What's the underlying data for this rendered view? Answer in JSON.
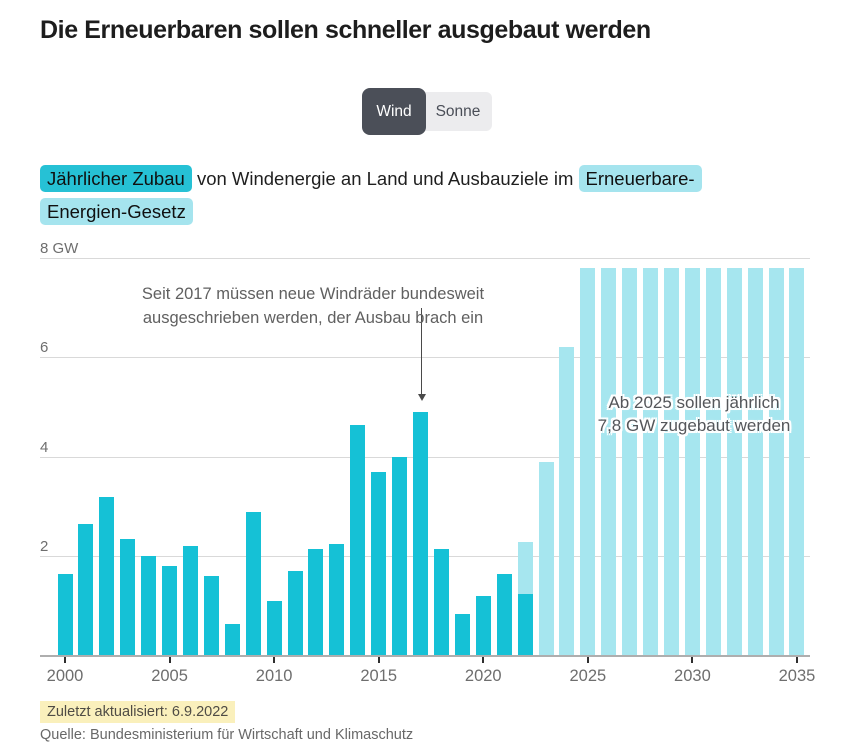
{
  "title": "Die Erneuerbaren sollen schneller ausgebaut werden",
  "toggle": {
    "wind_label": "Wind",
    "sonne_label": "Sonne",
    "selected": "Wind"
  },
  "subtitle": {
    "highlight_dark": "Jährlicher Zubau",
    "middle": "von Windenergie an Land und Ausbauziele im",
    "highlight_light_part1": "Erneuerbare-",
    "highlight_light_part2": "Energien-Gesetz"
  },
  "colors": {
    "bar_actual": "#15c1d6",
    "bar_target": "#a6e6ef",
    "highlight_dark_bg": "#26c1d5",
    "highlight_light_bg": "#a5e4ee",
    "updated_bg": "#faf0bc",
    "toggle_selected_bg": "#4b4f58",
    "toggle_unselected_bg": "#ececee"
  },
  "chart_data": {
    "type": "bar",
    "unit": "GW",
    "ylim": [
      0,
      8
    ],
    "yticks": [
      2,
      4,
      6,
      8
    ],
    "ytick_labels": [
      "2",
      "4",
      "6",
      "8 GW"
    ],
    "xticks": [
      2000,
      2005,
      2010,
      2015,
      2020,
      2025,
      2030,
      2035
    ],
    "grid": true,
    "series": [
      {
        "name": "Ausbauziele (EEG)",
        "style": "target",
        "points": [
          [
            2022,
            2.3
          ],
          [
            2023,
            3.9
          ],
          [
            2024,
            6.2
          ],
          [
            2025,
            7.8
          ],
          [
            2026,
            7.8
          ],
          [
            2027,
            7.8
          ],
          [
            2028,
            7.8
          ],
          [
            2029,
            7.8
          ],
          [
            2030,
            7.8
          ],
          [
            2031,
            7.8
          ],
          [
            2032,
            7.8
          ],
          [
            2033,
            7.8
          ],
          [
            2034,
            7.8
          ],
          [
            2035,
            7.8
          ]
        ]
      },
      {
        "name": "Jährlicher Zubau",
        "style": "actual",
        "points": [
          [
            2000,
            1.65
          ],
          [
            2001,
            2.65
          ],
          [
            2002,
            3.2
          ],
          [
            2003,
            2.35
          ],
          [
            2004,
            2.0
          ],
          [
            2005,
            1.8
          ],
          [
            2006,
            2.2
          ],
          [
            2007,
            1.6
          ],
          [
            2008,
            0.65
          ],
          [
            2009,
            2.9
          ],
          [
            2010,
            1.1
          ],
          [
            2011,
            1.7
          ],
          [
            2012,
            2.15
          ],
          [
            2013,
            2.25
          ],
          [
            2014,
            4.65
          ],
          [
            2015,
            3.7
          ],
          [
            2016,
            4.0
          ],
          [
            2017,
            4.9
          ],
          [
            2018,
            2.15
          ],
          [
            2019,
            0.85
          ],
          [
            2020,
            1.2
          ],
          [
            2021,
            1.65
          ],
          [
            2022,
            1.25
          ]
        ]
      }
    ],
    "annotations": [
      {
        "id": "anno-2017",
        "lines": [
          "Seit 2017 müssen neue Windräder bundesweit",
          "ausgeschrieben werden, der Ausbau brach ein"
        ],
        "arrow_year": 2017
      },
      {
        "id": "anno-2025",
        "lines": [
          "Ab 2025 sollen jährlich",
          "7,8 GW zugebaut werden"
        ]
      }
    ]
  },
  "footer": {
    "updated": "Zuletzt aktualisiert: 6.9.2022",
    "source": "Quelle: Bundesministerium für Wirtschaft und Klimaschutz"
  }
}
